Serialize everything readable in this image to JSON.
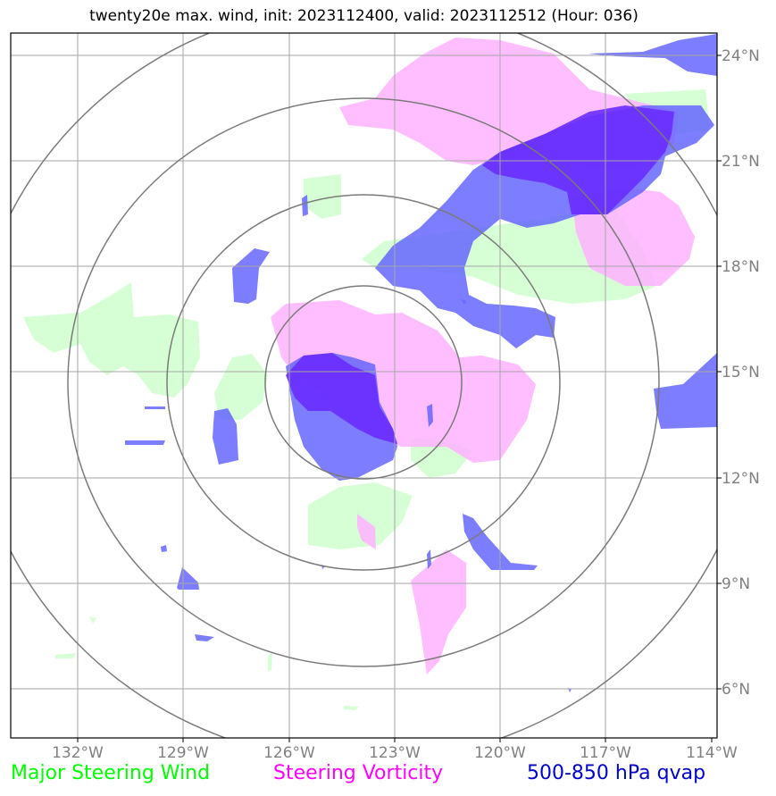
{
  "title": "twenty20e max. wind, init: 2023112400, valid: 2023112512 (Hour: 036)",
  "axes": {
    "lon_labels": [
      "132°W",
      "129°W",
      "126°W",
      "123°W",
      "120°W",
      "117°W",
      "114°W"
    ],
    "lat_labels": [
      "24°N",
      "21°N",
      "18°N",
      "15°N",
      "12°N",
      "9°N",
      "6°N"
    ]
  },
  "legend": {
    "wind": {
      "label": "Major Steering Wind",
      "color": "#00ff00"
    },
    "vorticity": {
      "label": "Steering Vorticity",
      "color": "#ff00ff"
    },
    "qvap": {
      "label": "500-850 hPa qvap",
      "color": "#0000cc"
    }
  },
  "colors": {
    "wind_fill": "#ccffcc",
    "vorticity_fill": "#ffb3ff",
    "qvap_fill": "#6666ff",
    "qvap_dark_fill": "#6a2cff",
    "gridline": "#a6a6a6",
    "range_ring": "#7a7a7a",
    "frame": "#000000",
    "tick_label": "#808080"
  },
  "range_rings": 4
}
